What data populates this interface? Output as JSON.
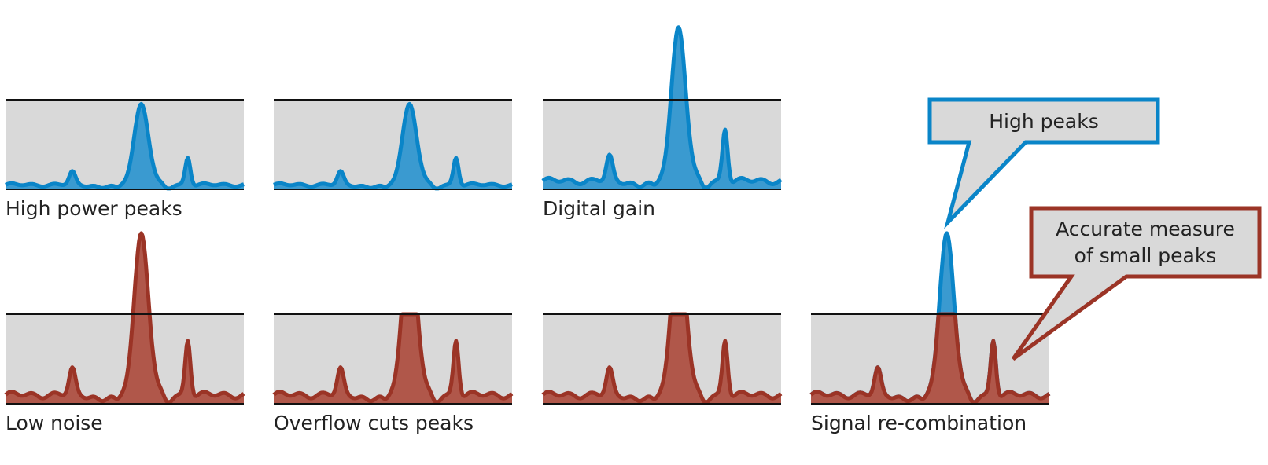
{
  "labels": [
    "High power peaks",
    "Digital gain",
    "Low noise",
    "Overflow cuts peaks",
    "Signal re-combination"
  ],
  "callouts": {
    "high_peaks": "High peaks",
    "small_peaks": [
      "Accurate measure",
      "of small peaks"
    ]
  }
}
